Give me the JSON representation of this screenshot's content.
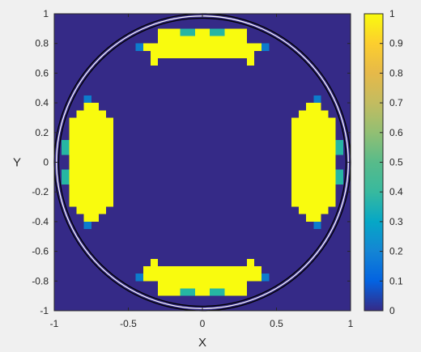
{
  "chart_data": {
    "type": "heatmap",
    "xlabel": "X",
    "ylabel": "Y",
    "xlim": [
      -1,
      1
    ],
    "ylim": [
      -1,
      1
    ],
    "xticks": [
      -1,
      -0.5,
      0,
      0.5,
      1
    ],
    "yticks": [
      -1,
      -0.8,
      -0.6,
      -0.4,
      -0.2,
      0,
      0.2,
      0.4,
      0.6,
      0.8,
      1
    ],
    "xtick_labels": [
      "-1",
      "-0.5",
      "0",
      "0.5",
      "1"
    ],
    "ytick_labels": [
      "-1",
      "-0.8",
      "-0.6",
      "-0.4",
      "-0.2",
      "0",
      "0.2",
      "0.4",
      "0.6",
      "0.8",
      "1"
    ],
    "colorbar": {
      "range": [
        0,
        1
      ],
      "ticks": [
        0,
        0.1,
        0.2,
        0.3,
        0.4,
        0.5,
        0.6,
        0.7,
        0.8,
        0.9,
        1
      ],
      "tick_labels": [
        "0",
        "0.1",
        "0.2",
        "0.3",
        "0.4",
        "0.5",
        "0.6",
        "0.7",
        "0.8",
        "0.9",
        "1"
      ],
      "colormap": "parula"
    },
    "grid": {
      "n": 40,
      "cell_width": 0.05,
      "origin": [
        -1,
        -1
      ]
    },
    "background_value": 0,
    "bright_blocks": [
      {
        "region": "top",
        "x_range": [
          -0.35,
          0.35
        ],
        "y_range": [
          0.7,
          0.8
        ],
        "value": 1
      },
      {
        "region": "top",
        "x_range": [
          -0.4,
          0.4
        ],
        "y_range": [
          0.75,
          0.8
        ],
        "value": 1
      },
      {
        "region": "top",
        "x_range": [
          -0.3,
          0.3
        ],
        "y_range": [
          0.8,
          0.9
        ],
        "value": 1
      },
      {
        "region": "top",
        "x_range": [
          -0.35,
          -0.3
        ],
        "y_range": [
          0.65,
          0.7
        ],
        "value": 1
      },
      {
        "region": "top",
        "x_range": [
          0.3,
          0.35
        ],
        "y_range": [
          0.65,
          0.7
        ],
        "value": 1
      },
      {
        "region": "bottom",
        "x_range": [
          -0.4,
          0.4
        ],
        "y_range": [
          -0.8,
          -0.7
        ],
        "value": 1
      },
      {
        "region": "bottom",
        "x_range": [
          -0.3,
          0.3
        ],
        "y_range": [
          -0.9,
          -0.8
        ],
        "value": 1
      },
      {
        "region": "bottom",
        "x_range": [
          -0.35,
          -0.3
        ],
        "y_range": [
          -0.7,
          -0.65
        ],
        "value": 1
      },
      {
        "region": "bottom",
        "x_range": [
          0.3,
          0.35
        ],
        "y_range": [
          -0.7,
          -0.65
        ],
        "value": 1
      },
      {
        "region": "left",
        "x_range": [
          -0.85,
          -0.65
        ],
        "y_range": [
          -0.35,
          0.35
        ],
        "value": 1
      },
      {
        "region": "left",
        "x_range": [
          -0.9,
          -0.85
        ],
        "y_range": [
          -0.3,
          0.3
        ],
        "value": 1
      },
      {
        "region": "left",
        "x_range": [
          -0.65,
          -0.6
        ],
        "y_range": [
          -0.3,
          0.3
        ],
        "value": 1
      },
      {
        "region": "left",
        "x_range": [
          -0.8,
          -0.7
        ],
        "y_range": [
          -0.4,
          -0.35
        ],
        "value": 1
      },
      {
        "region": "left",
        "x_range": [
          -0.8,
          -0.7
        ],
        "y_range": [
          0.35,
          0.4
        ],
        "value": 1
      },
      {
        "region": "right",
        "x_range": [
          0.65,
          0.85
        ],
        "y_range": [
          -0.35,
          0.35
        ],
        "value": 1
      },
      {
        "region": "right",
        "x_range": [
          0.85,
          0.9
        ],
        "y_range": [
          -0.3,
          0.3
        ],
        "value": 1
      },
      {
        "region": "right",
        "x_range": [
          0.6,
          0.65
        ],
        "y_range": [
          -0.3,
          0.3
        ],
        "value": 1
      },
      {
        "region": "right",
        "x_range": [
          0.7,
          0.8
        ],
        "y_range": [
          -0.4,
          -0.35
        ],
        "value": 1
      },
      {
        "region": "right",
        "x_range": [
          0.7,
          0.8
        ],
        "y_range": [
          0.35,
          0.4
        ],
        "value": 1
      }
    ],
    "edge_cells": [
      {
        "x_range": [
          -0.15,
          -0.05
        ],
        "y_range": [
          0.85,
          0.9
        ],
        "value": 0.5
      },
      {
        "x_range": [
          0.05,
          0.15
        ],
        "y_range": [
          0.85,
          0.9
        ],
        "value": 0.5
      },
      {
        "x_range": [
          -0.45,
          -0.4
        ],
        "y_range": [
          0.75,
          0.8
        ],
        "value": 0.25
      },
      {
        "x_range": [
          0.4,
          0.45
        ],
        "y_range": [
          0.75,
          0.8
        ],
        "value": 0.25
      },
      {
        "x_range": [
          -0.15,
          -0.05
        ],
        "y_range": [
          -0.9,
          -0.85
        ],
        "value": 0.5
      },
      {
        "x_range": [
          0.05,
          0.15
        ],
        "y_range": [
          -0.9,
          -0.85
        ],
        "value": 0.5
      },
      {
        "x_range": [
          -0.45,
          -0.4
        ],
        "y_range": [
          -0.8,
          -0.75
        ],
        "value": 0.25
      },
      {
        "x_range": [
          0.4,
          0.45
        ],
        "y_range": [
          -0.8,
          -0.75
        ],
        "value": 0.25
      },
      {
        "x_range": [
          -0.95,
          -0.9
        ],
        "y_range": [
          -0.15,
          -0.05
        ],
        "value": 0.5
      },
      {
        "x_range": [
          -0.95,
          -0.9
        ],
        "y_range": [
          0.05,
          0.15
        ],
        "value": 0.5
      },
      {
        "x_range": [
          -0.8,
          -0.75
        ],
        "y_range": [
          0.4,
          0.45
        ],
        "value": 0.25
      },
      {
        "x_range": [
          -0.8,
          -0.75
        ],
        "y_range": [
          -0.45,
          -0.4
        ],
        "value": 0.25
      },
      {
        "x_range": [
          0.9,
          0.95
        ],
        "y_range": [
          -0.15,
          -0.05
        ],
        "value": 0.5
      },
      {
        "x_range": [
          0.9,
          0.95
        ],
        "y_range": [
          0.05,
          0.15
        ],
        "value": 0.5
      },
      {
        "x_range": [
          0.75,
          0.8
        ],
        "y_range": [
          0.4,
          0.45
        ],
        "value": 0.25
      },
      {
        "x_range": [
          0.75,
          0.8
        ],
        "y_range": [
          -0.45,
          -0.4
        ],
        "value": 0.25
      }
    ],
    "circles": [
      {
        "center": [
          0,
          0
        ],
        "radius": 1.0,
        "stroke_color": "#000000"
      },
      {
        "center": [
          0,
          0
        ],
        "radius": 0.985,
        "stroke_color": "#ffffff"
      },
      {
        "center": [
          0,
          0
        ],
        "radius": 0.97,
        "stroke_color": "#000000"
      }
    ],
    "colors": {
      "low": "#352a87",
      "mid_0_25": "#0d7ccc",
      "mid_0_5": "#26b6a3",
      "high": "#f9fb0e"
    }
  }
}
